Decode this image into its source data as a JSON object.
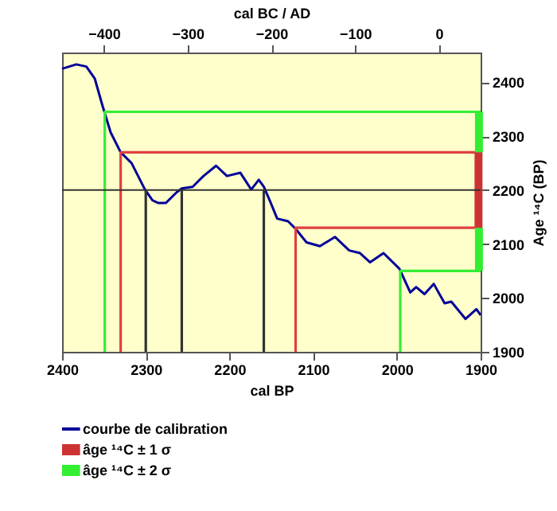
{
  "chart_data": {
    "type": "line",
    "xlabel": "cal BP",
    "x2label": "cal BC / AD",
    "ylabel": "Age ¹⁴C (BP)",
    "xlim": [
      2400,
      1900
    ],
    "xticks": [
      2400,
      2300,
      2200,
      2100,
      2000,
      1900
    ],
    "x2lim": [
      -450,
      50
    ],
    "x2ticks": [
      -400,
      -300,
      -200,
      -100,
      0
    ],
    "ylim": [
      1900,
      2455
    ],
    "yticks": [
      1900,
      2000,
      2100,
      2200,
      2300,
      2400
    ],
    "grid": false,
    "legend": "bottom",
    "ref_lines": [
      {
        "axis": "y",
        "value": 2200,
        "color": "#333333"
      }
    ],
    "series": [
      {
        "name": "courbe de calibration",
        "color": "#000099",
        "x": [
          2400,
          2383,
          2371,
          2361,
          2352,
          2342,
          2330,
          2317,
          2301,
          2292,
          2285,
          2276,
          2263,
          2257,
          2244,
          2231,
          2216,
          2203,
          2187,
          2174,
          2165,
          2159,
          2152,
          2143,
          2130,
          2121,
          2108,
          2092,
          2074,
          2057,
          2044,
          2032,
          2016,
          1997,
          1984,
          1977,
          1967,
          1956,
          1943,
          1935,
          1918,
          1905,
          1900
        ],
        "values": [
          2425,
          2433,
          2429,
          2407,
          2358,
          2307,
          2270,
          2250,
          2201,
          2181,
          2176,
          2176,
          2196,
          2203,
          2206,
          2226,
          2245,
          2226,
          2232,
          2201,
          2219,
          2206,
          2181,
          2147,
          2142,
          2128,
          2103,
          2096,
          2113,
          2088,
          2083,
          2066,
          2083,
          2054,
          2010,
          2020,
          2007,
          2026,
          1990,
          1993,
          1961,
          1979,
          1968
        ]
      },
      {
        "name": "âge ¹⁴C ± 1 σ",
        "type": "bar",
        "color": "#cc3333",
        "x": [
          1902.5
        ],
        "base": [
          2130
        ],
        "values": [
          140
        ]
      },
      {
        "name": "âge ¹⁴C ± 2 σ",
        "type": "bar",
        "color": "#33ee33",
        "x": [
          1902,
          1902
        ],
        "base": [
          2270,
          2050
        ],
        "values": [
          75,
          80
        ]
      },
      {
        "color": "#e04040",
        "x": [
          1900,
          2330,
          2330
        ],
        "values": [
          2270,
          2270,
          1900
        ]
      },
      {
        "color": "#e04040",
        "x": [
          1900,
          2121,
          2121
        ],
        "values": [
          2130,
          2130,
          1900
        ]
      },
      {
        "color": "#33ee33",
        "x": [
          1900,
          2349,
          2349
        ],
        "values": [
          2345,
          2345,
          1900
        ]
      },
      {
        "color": "#33ee33",
        "x": [
          1900,
          1996,
          1996
        ],
        "values": [
          2050,
          2050,
          1900
        ]
      },
      {
        "color": "#333333",
        "x": [
          2300,
          2300
        ],
        "values": [
          2200,
          1900
        ]
      },
      {
        "color": "#333333",
        "x": [
          2257,
          2257
        ],
        "values": [
          2200,
          1900
        ]
      },
      {
        "color": "#333333",
        "x": [
          2159,
          2159
        ],
        "values": [
          2200,
          1900
        ]
      }
    ]
  }
}
